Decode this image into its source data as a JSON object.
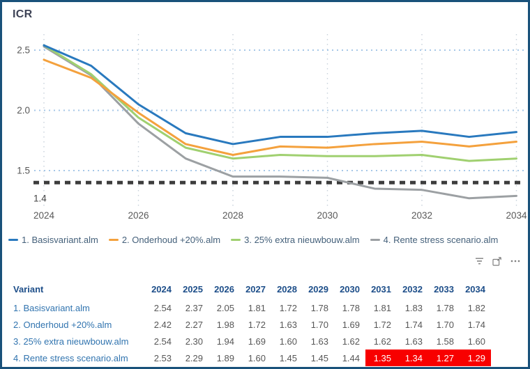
{
  "title": "ICR",
  "chart_data": {
    "type": "line",
    "title": "ICR",
    "x": [
      2024,
      2025,
      2026,
      2027,
      2028,
      2029,
      2030,
      2031,
      2032,
      2033,
      2034
    ],
    "x_ticks": [
      2024,
      2026,
      2028,
      2030,
      2032,
      2034
    ],
    "y_ticks": [
      "2.5",
      "2.0",
      "1.5"
    ],
    "y_tick_values": [
      2.5,
      2.0,
      1.5
    ],
    "ylim": [
      1.2,
      2.62
    ],
    "grid": true,
    "legend_position": "bottom",
    "series": [
      {
        "name": "1. Basisvariant.alm",
        "color": "#2979BE",
        "values": [
          2.54,
          2.37,
          2.05,
          1.81,
          1.72,
          1.78,
          1.78,
          1.81,
          1.83,
          1.78,
          1.82
        ]
      },
      {
        "name": "2. Onderhoud +20%.alm",
        "color": "#F4A13D",
        "values": [
          2.42,
          2.27,
          1.98,
          1.72,
          1.63,
          1.7,
          1.69,
          1.72,
          1.74,
          1.7,
          1.74
        ]
      },
      {
        "name": "3. 25% extra nieuwbouw.alm",
        "color": "#A0D070",
        "values": [
          2.54,
          2.3,
          1.94,
          1.69,
          1.6,
          1.63,
          1.62,
          1.62,
          1.63,
          1.58,
          1.6
        ]
      },
      {
        "name": "4. Rente stress scenario.alm",
        "color": "#9CA0A3",
        "values": [
          2.53,
          2.29,
          1.89,
          1.6,
          1.45,
          1.45,
          1.44,
          1.35,
          1.34,
          1.27,
          1.29
        ]
      }
    ],
    "reference_line": {
      "value": 1.4,
      "label": "1.4",
      "color": "#3D3D3D"
    }
  },
  "colors": {
    "frame_border": "#19517A",
    "h_gridline": "#A6C7E7",
    "v_gridline": "#C6D0DA",
    "axis_text": "#595959",
    "table_header": "#1D4E89",
    "table_row_label": "#3174AF",
    "table_value": "#575757",
    "highlight_bg": "#F80000",
    "highlight_text": "#FFFFFF"
  },
  "toolbar": {
    "icons": [
      "filter-icon",
      "focus-mode-icon",
      "more-options-icon"
    ]
  },
  "table": {
    "header": [
      "Variant",
      "2024",
      "2025",
      "2026",
      "2027",
      "2028",
      "2029",
      "2030",
      "2031",
      "2032",
      "2033",
      "2034"
    ],
    "rows": [
      {
        "label": "1. Basisvariant.alm",
        "values": [
          "2.54",
          "2.37",
          "2.05",
          "1.81",
          "1.72",
          "1.78",
          "1.78",
          "1.81",
          "1.83",
          "1.78",
          "1.82"
        ],
        "highlight": []
      },
      {
        "label": "2. Onderhoud +20%.alm",
        "values": [
          "2.42",
          "2.27",
          "1.98",
          "1.72",
          "1.63",
          "1.70",
          "1.69",
          "1.72",
          "1.74",
          "1.70",
          "1.74"
        ],
        "highlight": []
      },
      {
        "label": "3. 25% extra nieuwbouw.alm",
        "values": [
          "2.54",
          "2.30",
          "1.94",
          "1.69",
          "1.60",
          "1.63",
          "1.62",
          "1.62",
          "1.63",
          "1.58",
          "1.60"
        ],
        "highlight": []
      },
      {
        "label": "4. Rente stress scenario.alm",
        "values": [
          "2.53",
          "2.29",
          "1.89",
          "1.60",
          "1.45",
          "1.45",
          "1.44",
          "1.35",
          "1.34",
          "1.27",
          "1.29"
        ],
        "highlight": [
          7,
          8,
          9,
          10
        ]
      }
    ]
  }
}
